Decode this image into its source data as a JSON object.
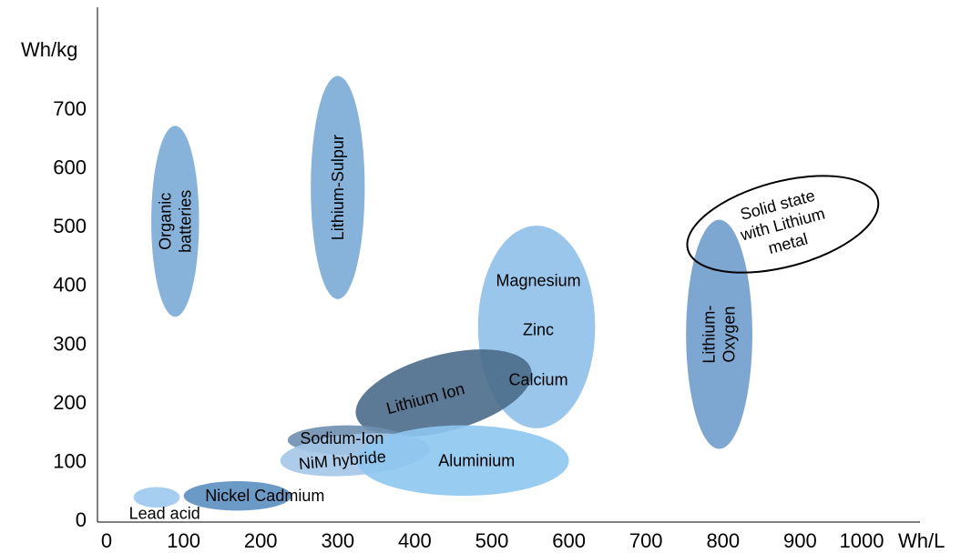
{
  "chart_data": {
    "type": "scatter",
    "title": "",
    "xlabel": "Wh/L",
    "ylabel": "Wh/kg",
    "xlim": [
      0,
      1000
    ],
    "ylim": [
      0,
      700
    ],
    "x_ticks": [
      0,
      100,
      200,
      300,
      400,
      500,
      600,
      700,
      800,
      900,
      1000
    ],
    "y_ticks": [
      0,
      100,
      200,
      300,
      400,
      500,
      600,
      700
    ],
    "grid": false,
    "legend": "none",
    "series": [
      {
        "name": "Organic batteries",
        "label_lines": [
          "Organic",
          "batteries"
        ],
        "x_range": [
          58,
          120
        ],
        "y_range": [
          345,
          670
        ],
        "color": "#7aaad6",
        "label_rotation": -90
      },
      {
        "name": "Lithium-Sulpur",
        "label_lines": [
          "Lithium-Sulpur"
        ],
        "x_range": [
          265,
          335
        ],
        "y_range": [
          375,
          755
        ],
        "color": "#7aaad6",
        "label_rotation": -90
      },
      {
        "name": "Magnesium / Zinc / Calcium",
        "label_lines": [
          "Magnesium",
          "Zinc",
          "Calcium"
        ],
        "x_range": [
          482,
          634
        ],
        "y_range": [
          155,
          500
        ],
        "color": "#8ec0e8",
        "label_rotation": 0
      },
      {
        "name": "Lithium-Oxygen",
        "label_lines": [
          "Lithium-",
          "Oxygen"
        ],
        "x_range": [
          752,
          838
        ],
        "y_range": [
          120,
          510
        ],
        "color": "#6f9ccc",
        "label_rotation": -90
      },
      {
        "name": "Solid state with Lithium metal",
        "label_lines": [
          "Solid state",
          "with Lithium",
          "metal"
        ],
        "x_range": [
          750,
          1005
        ],
        "y_range": [
          430,
          575
        ],
        "color": "none",
        "label_rotation": -15
      },
      {
        "name": "Lithium Ion",
        "label_lines": [
          "Lithium Ion"
        ],
        "x_range": [
          320,
          555
        ],
        "y_range": [
          150,
          280
        ],
        "color": "#4a6b8a",
        "label_rotation": -15
      },
      {
        "name": "Sodium-Ion",
        "label_lines": [
          "Sodium-Ion"
        ],
        "x_range": [
          235,
          390
        ],
        "y_range": [
          110,
          160
        ],
        "color": "#6e8fb0",
        "label_rotation": 0
      },
      {
        "name": "NiM hybride",
        "label_lines": [
          "NiM hybride"
        ],
        "x_range": [
          225,
          420
        ],
        "y_range": [
          75,
          145
        ],
        "color": "#a3c6e8",
        "label_rotation": -5
      },
      {
        "name": "Aluminium",
        "label_lines": [
          "Aluminium"
        ],
        "x_range": [
          325,
          600
        ],
        "y_range": [
          40,
          160
        ],
        "color": "#8ec6f0",
        "label_rotation": 0
      },
      {
        "name": "Nickel Cadmium",
        "label_lines": [
          "Nickel Cadmium"
        ],
        "x_range": [
          100,
          240
        ],
        "y_range": [
          15,
          65
        ],
        "color": "#5b8fc0",
        "label_rotation": 0
      },
      {
        "name": "Lead acid",
        "label_lines": [
          "Lead acid"
        ],
        "x_range": [
          35,
          95
        ],
        "y_range": [
          20,
          55
        ],
        "color": "#9cc9f0",
        "label_rotation": 0
      }
    ]
  }
}
